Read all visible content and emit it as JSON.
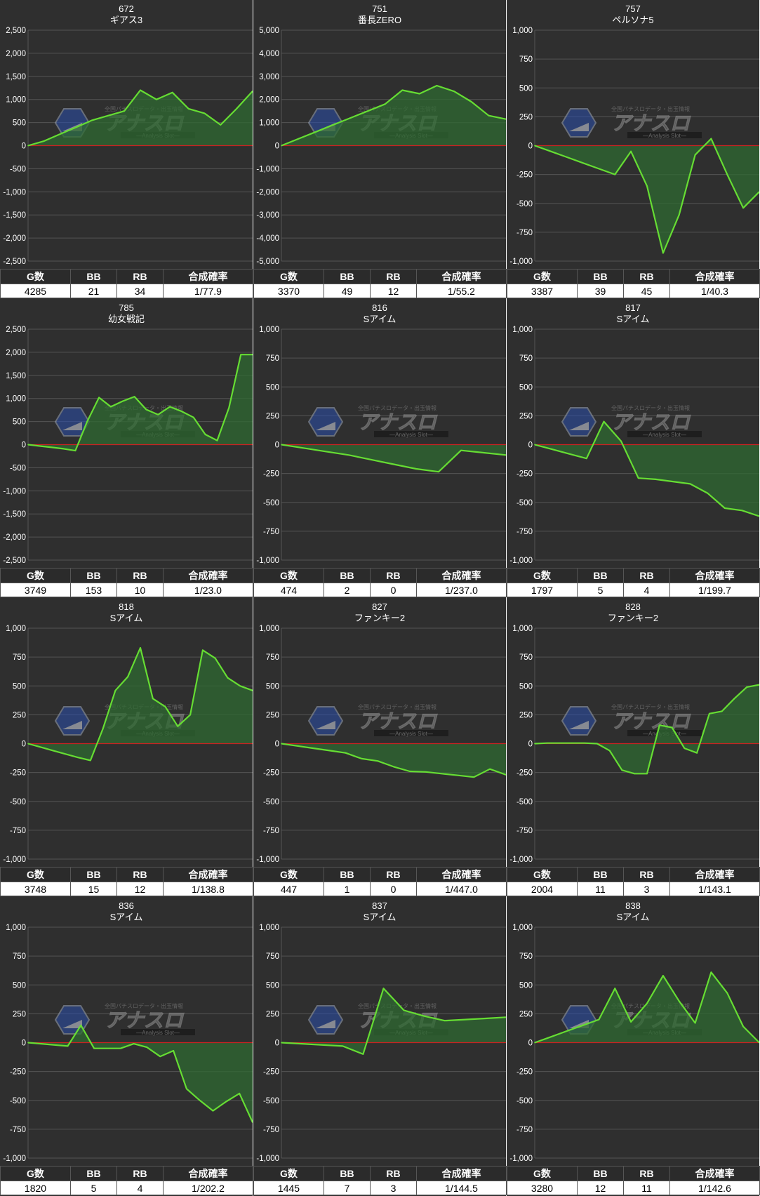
{
  "chart_data": [
    {
      "type": "area",
      "id": "672",
      "title": "672",
      "subtitle": "ギアス3",
      "ylim": [
        -2500,
        2500
      ],
      "yticks": [
        2500,
        2000,
        1500,
        1000,
        500,
        0,
        -500,
        -1000,
        -1500,
        -2000,
        -2500
      ],
      "values": [
        0,
        100,
        250,
        400,
        550,
        650,
        750,
        1200,
        1000,
        1150,
        800,
        700,
        450,
        800,
        1180
      ],
      "stats": {
        "g": "4285",
        "bb": "21",
        "rb": "34",
        "rate": "1/77.9"
      }
    },
    {
      "type": "area",
      "id": "751",
      "title": "751",
      "subtitle": "番長ZERO",
      "ylim": [
        -5000,
        5000
      ],
      "yticks": [
        5000,
        4000,
        3000,
        2000,
        1000,
        0,
        -1000,
        -2000,
        -3000,
        -4000,
        -5000
      ],
      "values": [
        0,
        300,
        600,
        900,
        1200,
        1500,
        1800,
        2400,
        2250,
        2600,
        2350,
        1900,
        1300,
        1150
      ],
      "stats": {
        "g": "3370",
        "bb": "49",
        "rb": "12",
        "rate": "1/55.2"
      }
    },
    {
      "type": "area",
      "id": "757",
      "title": "757",
      "subtitle": "ペルソナ5",
      "ylim": [
        -1000,
        1000
      ],
      "yticks": [
        1000,
        750,
        500,
        250,
        0,
        -250,
        -500,
        -750,
        -1000
      ],
      "values": [
        0,
        -50,
        -100,
        -150,
        -200,
        -250,
        -50,
        -350,
        -930,
        -600,
        -80,
        60,
        -250,
        -540,
        -400
      ],
      "stats": {
        "g": "3387",
        "bb": "39",
        "rb": "45",
        "rate": "1/40.3"
      }
    },
    {
      "type": "area",
      "id": "785",
      "title": "785",
      "subtitle": "幼女戦記",
      "ylim": [
        -2500,
        2500
      ],
      "yticks": [
        2500,
        2000,
        1500,
        1000,
        500,
        0,
        -500,
        -1000,
        -1500,
        -2000,
        -2500
      ],
      "values": [
        0,
        -30,
        -60,
        -90,
        -130,
        500,
        1020,
        820,
        940,
        1040,
        760,
        650,
        820,
        720,
        590,
        220,
        90,
        800,
        1950,
        1950
      ],
      "stats": {
        "g": "3749",
        "bb": "153",
        "rb": "10",
        "rate": "1/23.0"
      }
    },
    {
      "type": "area",
      "id": "816",
      "title": "816",
      "subtitle": "Sアイム",
      "ylim": [
        -1000,
        1000
      ],
      "yticks": [
        1000,
        750,
        500,
        250,
        0,
        -250,
        -500,
        -750,
        -1000
      ],
      "values": [
        0,
        -30,
        -60,
        -90,
        -130,
        -170,
        -210,
        -235,
        -50,
        -70,
        -90
      ],
      "stats": {
        "g": "474",
        "bb": "2",
        "rb": "0",
        "rate": "1/237.0"
      }
    },
    {
      "type": "area",
      "id": "817",
      "title": "817",
      "subtitle": "Sアイム",
      "ylim": [
        -1000,
        1000
      ],
      "yticks": [
        1000,
        750,
        500,
        250,
        0,
        -250,
        -500,
        -750,
        -1000
      ],
      "values": [
        0,
        -40,
        -80,
        -120,
        200,
        30,
        -290,
        -300,
        -320,
        -340,
        -420,
        -550,
        -570,
        -620
      ],
      "stats": {
        "g": "1797",
        "bb": "5",
        "rb": "4",
        "rate": "1/199.7"
      }
    },
    {
      "type": "area",
      "id": "818",
      "title": "818",
      "subtitle": "Sアイム",
      "ylim": [
        -1000,
        1000
      ],
      "yticks": [
        1000,
        750,
        500,
        250,
        0,
        -250,
        -500,
        -750,
        -1000
      ],
      "values": [
        0,
        -30,
        -60,
        -90,
        -120,
        -145,
        130,
        460,
        580,
        830,
        390,
        320,
        150,
        250,
        810,
        740,
        570,
        500,
        460
      ],
      "stats": {
        "g": "3748",
        "bb": "15",
        "rb": "12",
        "rate": "1/138.8"
      }
    },
    {
      "type": "area",
      "id": "827",
      "title": "827",
      "subtitle": "ファンキー2",
      "ylim": [
        -1000,
        1000
      ],
      "yticks": [
        1000,
        750,
        500,
        250,
        0,
        -250,
        -500,
        -750,
        -1000
      ],
      "values": [
        0,
        -20,
        -40,
        -60,
        -80,
        -130,
        -150,
        -200,
        -240,
        -245,
        -260,
        -275,
        -290,
        -220,
        -270
      ],
      "stats": {
        "g": "447",
        "bb": "1",
        "rb": "0",
        "rate": "1/447.0"
      }
    },
    {
      "type": "area",
      "id": "828",
      "title": "828",
      "subtitle": "ファンキー2",
      "ylim": [
        -1000,
        1000
      ],
      "yticks": [
        1000,
        750,
        500,
        250,
        0,
        -250,
        -500,
        -750,
        -1000
      ],
      "values": [
        0,
        5,
        5,
        5,
        5,
        0,
        -60,
        -230,
        -260,
        -260,
        160,
        140,
        -40,
        -80,
        260,
        280,
        390,
        490,
        510
      ],
      "stats": {
        "g": "2004",
        "bb": "11",
        "rb": "3",
        "rate": "1/143.1"
      }
    },
    {
      "type": "area",
      "id": "836",
      "title": "836",
      "subtitle": "Sアイム",
      "ylim": [
        -1000,
        1000
      ],
      "yticks": [
        1000,
        750,
        500,
        250,
        0,
        -250,
        -500,
        -750,
        -1000
      ],
      "values": [
        0,
        -10,
        -20,
        -30,
        150,
        -50,
        -50,
        -50,
        -10,
        -40,
        -120,
        -70,
        -400,
        -500,
        -590,
        -510,
        -440,
        -690
      ],
      "stats": {
        "g": "1820",
        "bb": "5",
        "rb": "4",
        "rate": "1/202.2"
      }
    },
    {
      "type": "area",
      "id": "837",
      "title": "837",
      "subtitle": "Sアイム",
      "ylim": [
        -1000,
        1000
      ],
      "yticks": [
        1000,
        750,
        500,
        250,
        0,
        -250,
        -500,
        -750,
        -1000
      ],
      "values": [
        0,
        -10,
        -20,
        -30,
        -100,
        470,
        280,
        230,
        190,
        200,
        210,
        220
      ],
      "stats": {
        "g": "1445",
        "bb": "7",
        "rb": "3",
        "rate": "1/144.5"
      }
    },
    {
      "type": "area",
      "id": "838",
      "title": "838",
      "subtitle": "Sアイム",
      "ylim": [
        -1000,
        1000
      ],
      "yticks": [
        1000,
        750,
        500,
        250,
        0,
        -250,
        -500,
        -750,
        -1000
      ],
      "values": [
        0,
        50,
        100,
        150,
        200,
        470,
        180,
        340,
        580,
        360,
        170,
        610,
        430,
        140,
        0
      ],
      "stats": {
        "g": "3280",
        "bb": "12",
        "rb": "11",
        "rate": "1/142.6"
      }
    }
  ],
  "table_headers": {
    "g": "G数",
    "bb": "BB",
    "rb": "RB",
    "rate": "合成確率"
  },
  "watermark": {
    "brand": "アナスロ",
    "tagline": "—Analysis Slot—",
    "top_text": "全国パチスロデータ・出玉情報"
  },
  "colors": {
    "line": "#66dd33",
    "fill": "#2f6a32",
    "zero": "#cc2222",
    "grid": "#555555",
    "bg": "#2f2f2f",
    "text": "#ffffff"
  }
}
